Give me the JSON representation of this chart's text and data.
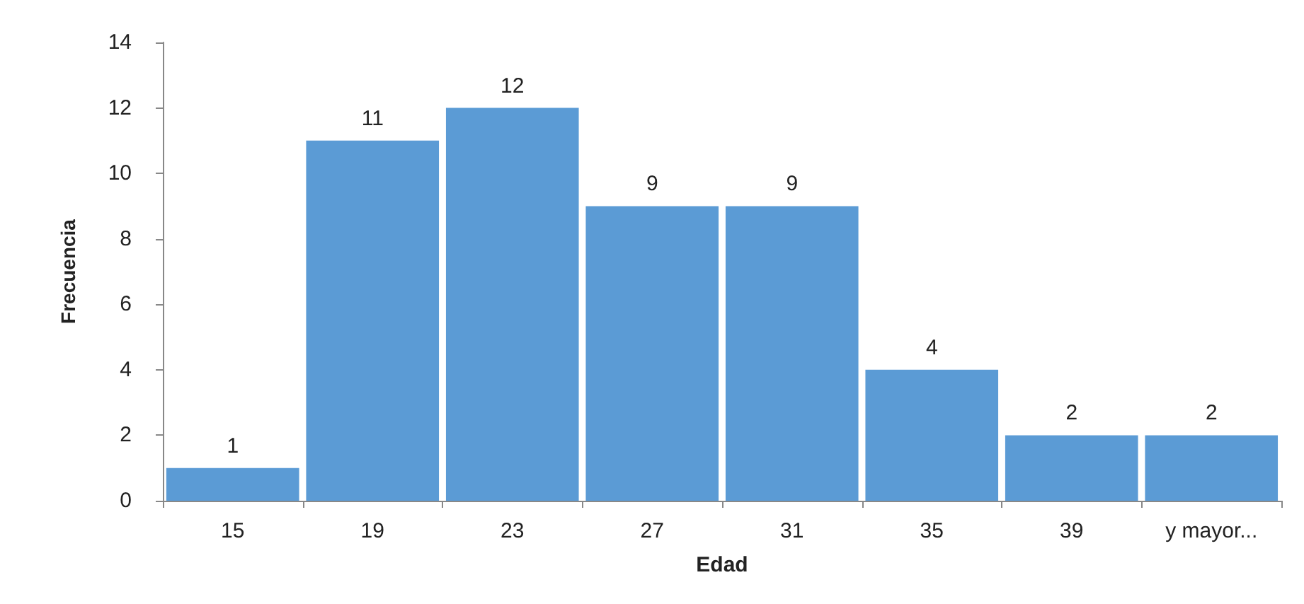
{
  "chart_data": {
    "type": "bar",
    "xlabel": "Edad",
    "ylabel": "Frecuencia",
    "categories": [
      "15",
      "19",
      "23",
      "27",
      "31",
      "35",
      "39",
      "y mayor..."
    ],
    "values": [
      1,
      11,
      12,
      9,
      9,
      4,
      2,
      2
    ],
    "color": "#5b9bd5",
    "ylim": [
      0,
      14
    ],
    "yticks": [
      0,
      2,
      4,
      6,
      8,
      10,
      12,
      14
    ],
    "grid": false,
    "data_labels": true
  }
}
